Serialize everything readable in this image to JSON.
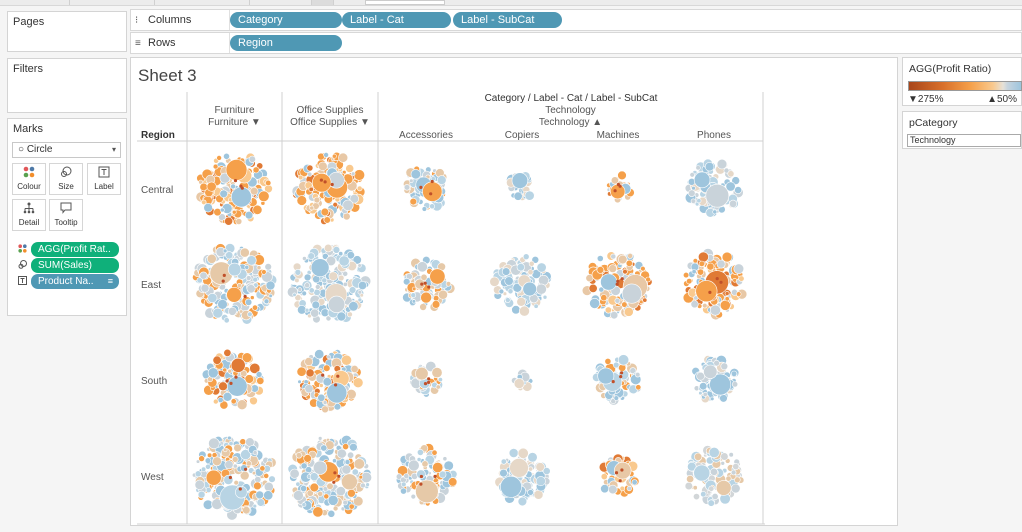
{
  "panels": {
    "pages_title": "Pages",
    "filters_title": "Filters",
    "marks_title": "Marks"
  },
  "shelves": {
    "columns_label": "Columns",
    "rows_label": "Rows",
    "columns_pills": [
      "Category",
      "Label - Cat",
      "Label - SubCat"
    ],
    "rows_pills": [
      "Region"
    ]
  },
  "marks": {
    "mark_type": "Circle",
    "buttons": [
      "Colour",
      "Size",
      "Label",
      "Detail",
      "Tooltip"
    ],
    "fields": [
      {
        "label": "AGG(Profit Rat..",
        "color": "#0fb07a",
        "icon": "colour-icon"
      },
      {
        "label": "SUM(Sales)",
        "color": "#0fb07a",
        "icon": "size-icon"
      },
      {
        "label": "Product Na..",
        "color": "#4f98b4",
        "icon": "label-icon"
      }
    ]
  },
  "sheet": {
    "title": "Sheet 3",
    "header_title": "Category / Label - Cat / Label - SubCat",
    "row_header": "Region",
    "furniture_l1": "Furniture",
    "furniture_l2": "Furniture ▼",
    "office_l1": "Office Supplies",
    "office_l2": "Office Supplies ▼",
    "tech_l1": "Technology",
    "tech_l2": "Technology ▲",
    "subcats": [
      "Accessories",
      "Copiers",
      "Machines",
      "Phones"
    ],
    "regions": [
      "Central",
      "East",
      "South",
      "West"
    ]
  },
  "legend": {
    "title": "AGG(Profit Ratio)",
    "low": "▼275%",
    "high": "▲50%",
    "colors": [
      "#a8461b",
      "#f5a04a",
      "#e6e1d8",
      "#9ec5dd"
    ]
  },
  "parameter": {
    "title": "pCategory",
    "value": "Technology"
  },
  "chart_data": {
    "type": "scatter",
    "mark": "packed circles",
    "columns": [
      "Furniture",
      "Office Supplies",
      "Accessories",
      "Copiers",
      "Machines",
      "Phones"
    ],
    "rows": [
      "Central",
      "East",
      "South",
      "West"
    ],
    "color_field": "AGG(Profit Ratio)",
    "size_field": "SUM(Sales)",
    "label_field": "Product Name",
    "cell_fill": [
      [
        0.88,
        0.85,
        0.55,
        0.35,
        0.35,
        0.65
      ],
      [
        0.98,
        0.95,
        0.62,
        0.7,
        0.8,
        0.78
      ],
      [
        0.72,
        0.75,
        0.38,
        0.22,
        0.55,
        0.55
      ],
      [
        1.0,
        1.0,
        0.7,
        0.65,
        0.48,
        0.7
      ]
    ],
    "cell_tone": [
      [
        "orange",
        "orange",
        "mixed",
        "blue",
        "orange",
        "blue"
      ],
      [
        "mixed",
        "blue",
        "mixed",
        "blue",
        "orange",
        "orange"
      ],
      [
        "orange",
        "orange",
        "mixed",
        "blue",
        "mixed",
        "blue"
      ],
      [
        "mixed",
        "mixed",
        "mixed",
        "blue",
        "orange",
        "grey"
      ]
    ]
  }
}
